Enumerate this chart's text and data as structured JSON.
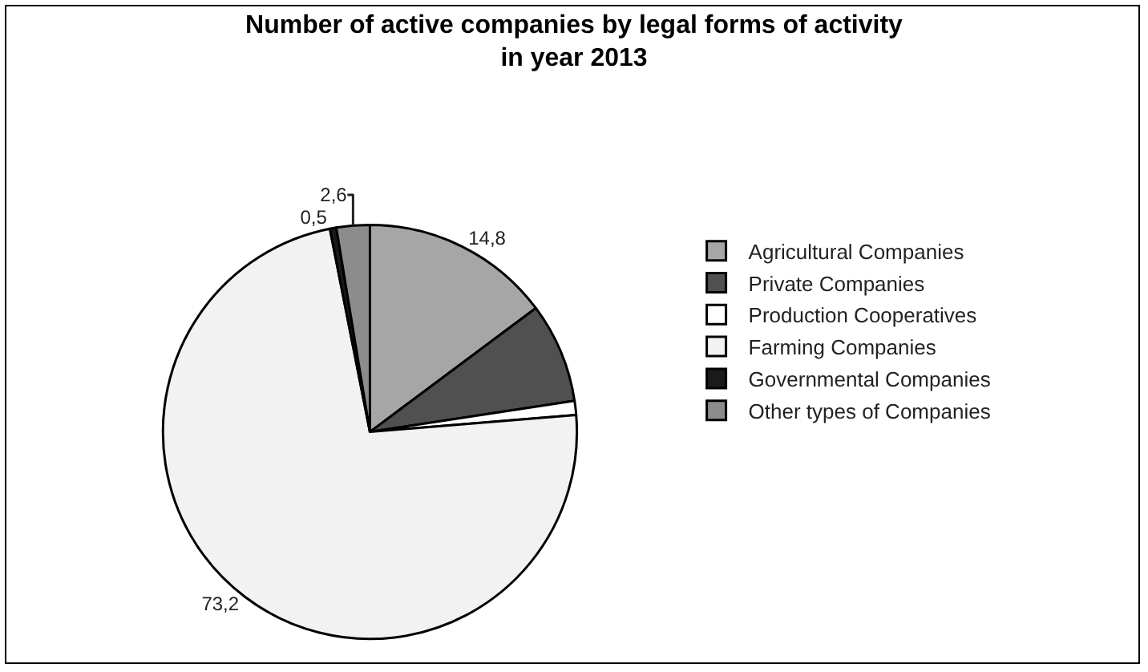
{
  "chart_data": {
    "type": "pie",
    "title": "Number of active companies by legal forms of activity\nin year 2013",
    "categories": [
      "Agricultural Companies",
      "Private Companies",
      "Production Cooperatives",
      "Farming Companies",
      "Governmental Companies",
      "Other types of Companies"
    ],
    "values": [
      14.8,
      7.8,
      1.1,
      73.2,
      0.5,
      2.6
    ],
    "value_labels": [
      "14,8",
      null,
      null,
      "73,2",
      "0,5",
      "2,6"
    ],
    "colors": [
      "#a6a6a6",
      "#505050",
      "#ffffff",
      "#f2f2f2",
      "#1a1a1a",
      "#8c8c8c"
    ],
    "legend": "right"
  }
}
